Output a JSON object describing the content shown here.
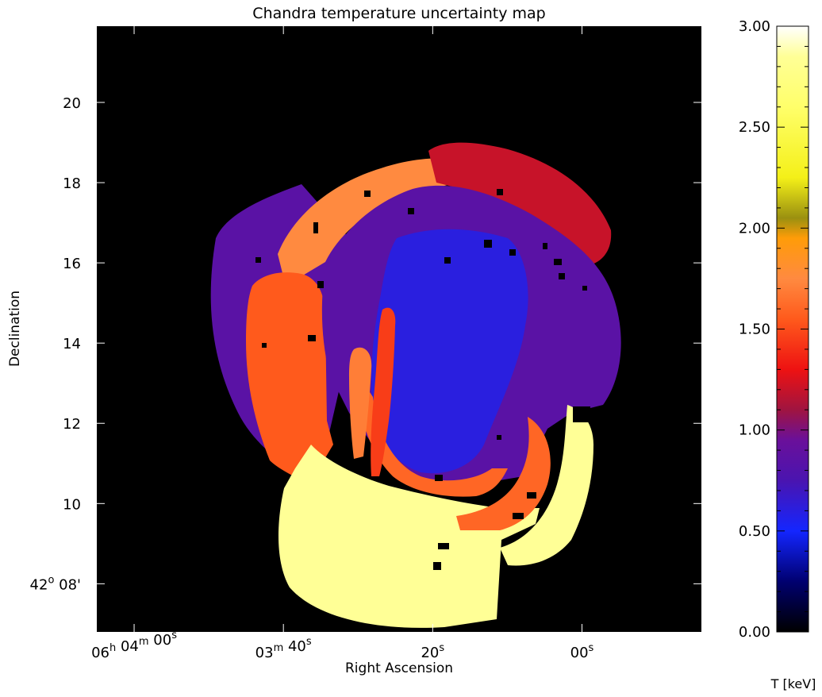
{
  "chart_data": [
    {
      "type": "heatmap",
      "title": "Chandra temperature uncertainty map",
      "xlabel": "Right Ascension",
      "ylabel": "Declination",
      "x_ticks": [
        {
          "value": 240,
          "h": "06",
          "m": "04",
          "s": "00"
        },
        {
          "value": 220,
          "h": "",
          "m": "03",
          "s": "40"
        },
        {
          "value": 200,
          "h": "",
          "m": "",
          "s": "20"
        },
        {
          "value": 180,
          "h": "",
          "m": "",
          "s": "00"
        }
      ],
      "xlim_seconds_after_06h03m": [
        245,
        164
      ],
      "y_ticks": [
        {
          "value": 8,
          "label": "42° 08'",
          "deg": "42",
          "min": "08'"
        },
        {
          "value": 10,
          "label": "10"
        },
        {
          "value": 12,
          "label": "12"
        },
        {
          "value": 14,
          "label": "14"
        },
        {
          "value": 16,
          "label": "16"
        },
        {
          "value": 18,
          "label": "18"
        },
        {
          "value": 20,
          "label": "20"
        }
      ],
      "ylim_arcmin_after_42deg": [
        6.8,
        21.9
      ],
      "background_value_keV": 0.0,
      "regions": [
        {
          "region": "outer west arc",
          "value_keV": 0.85
        },
        {
          "region": "north-west arc",
          "value_keV": 1.75
        },
        {
          "region": "west crescent",
          "value_keV": 1.55
        },
        {
          "region": "north-east arc",
          "value_keV": 1.2
        },
        {
          "region": "central shell",
          "value_keV": 0.85
        },
        {
          "region": "core",
          "value_keV": 0.6
        },
        {
          "region": "south arc",
          "value_keV": 2.85
        },
        {
          "region": "south-east arc",
          "value_keV": 2.85
        },
        {
          "region": "inner ring (south)",
          "value_keV": 1.6
        },
        {
          "region": "inner streak",
          "value_keV": 1.45
        },
        {
          "region": "inner pale streak",
          "value_keV": 1.7
        }
      ]
    },
    {
      "type": "colorbar",
      "label": "T [keV]",
      "ylim": [
        0,
        3
      ],
      "ticks": [
        "0.00",
        "0.50",
        "1.00",
        "1.50",
        "2.00",
        "2.50",
        "3.00"
      ],
      "colormap": [
        [
          0.0,
          "#000000"
        ],
        [
          0.25,
          "#000070"
        ],
        [
          0.5,
          "#1426ff"
        ],
        [
          0.75,
          "#4a14b0"
        ],
        [
          0.95,
          "#6a109a"
        ],
        [
          1.1,
          "#a01440"
        ],
        [
          1.3,
          "#ee1212"
        ],
        [
          1.55,
          "#ff5a1c"
        ],
        [
          1.75,
          "#ff8a40"
        ],
        [
          1.95,
          "#ff9c08"
        ],
        [
          2.05,
          "#9a9010"
        ],
        [
          2.25,
          "#f4f018"
        ],
        [
          2.6,
          "#ffff6a"
        ],
        [
          2.85,
          "#ffff96"
        ],
        [
          3.0,
          "#ffffff"
        ]
      ]
    }
  ]
}
